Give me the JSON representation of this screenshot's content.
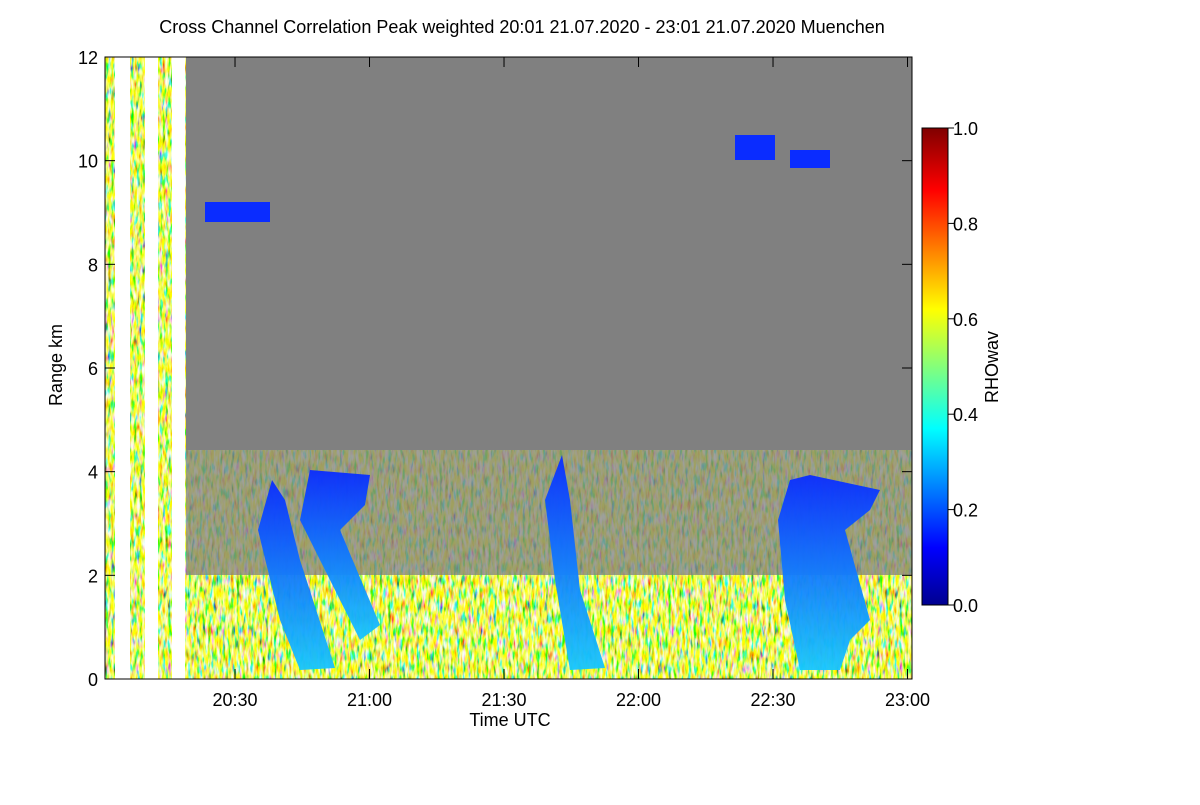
{
  "chart_data": {
    "type": "heatmap",
    "title": "Cross Channel Correlation Peak weighted   20:01 21.07.2020 - 23:01 21.07.2020 Muenchen",
    "xlabel": "Time UTC",
    "ylabel": "Range km",
    "xlim": [
      1201,
      1381
    ],
    "xticks": [
      {
        "value": 1230,
        "label": "20:30"
      },
      {
        "value": 1260,
        "label": "21:00"
      },
      {
        "value": 1290,
        "label": "21:30"
      },
      {
        "value": 1320,
        "label": "22:00"
      },
      {
        "value": 1350,
        "label": "22:30"
      },
      {
        "value": 1380,
        "label": "23:00"
      }
    ],
    "ylim": [
      0,
      12
    ],
    "yticks": [
      0,
      2,
      4,
      6,
      8,
      10,
      12
    ],
    "colorbar": {
      "label": "RHOwav",
      "colormap": "jet",
      "lim": [
        0,
        1
      ],
      "ticks": [
        {
          "value": 0,
          "label": "0.0"
        },
        {
          "value": 0.2,
          "label": "0.2"
        },
        {
          "value": 0.4,
          "label": "0.4"
        },
        {
          "value": 0.6,
          "label": "0.6"
        },
        {
          "value": 0.8,
          "label": "0.8"
        },
        {
          "value": 1,
          "label": "1.0"
        }
      ]
    }
  }
}
